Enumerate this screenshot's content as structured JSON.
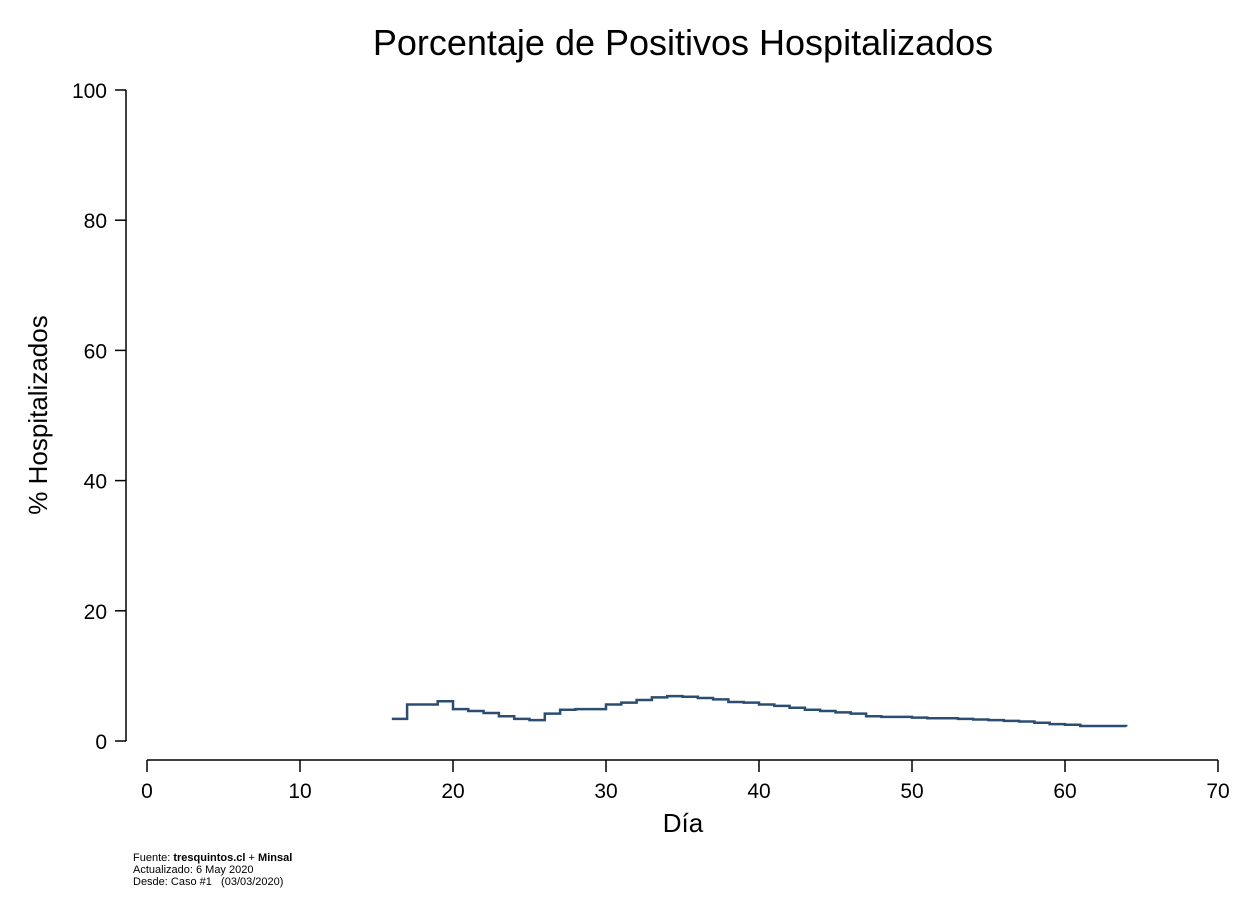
{
  "chart_data": {
    "type": "line",
    "step": true,
    "title": "Porcentaje de Positivos Hospitalizados",
    "xlabel": "Día",
    "ylabel": "% Hospitalizados",
    "xlim": [
      0,
      70
    ],
    "ylim": [
      0,
      100
    ],
    "xticks": [
      0,
      10,
      20,
      30,
      40,
      50,
      60,
      70
    ],
    "yticks": [
      0,
      20,
      40,
      60,
      80,
      100
    ],
    "grid": false,
    "line_color": "#2b4d72",
    "series": [
      {
        "x": [
          16,
          17,
          18,
          19,
          20,
          21,
          22,
          23,
          24,
          25,
          26,
          27,
          28,
          29,
          30,
          31,
          32,
          33,
          34,
          35,
          36,
          37,
          38,
          39,
          40,
          41,
          42,
          43,
          44,
          45,
          46,
          47,
          48,
          49,
          50,
          51,
          52,
          53,
          54,
          55,
          56,
          57,
          58,
          59,
          60,
          61,
          62,
          63,
          64
        ],
        "values": [
          3.4,
          5.6,
          5.6,
          6.1,
          4.9,
          4.6,
          4.3,
          3.8,
          3.4,
          3.2,
          4.2,
          4.8,
          4.9,
          4.9,
          5.6,
          5.9,
          6.3,
          6.7,
          6.9,
          6.8,
          6.6,
          6.4,
          6.0,
          5.9,
          5.6,
          5.4,
          5.1,
          4.8,
          4.6,
          4.4,
          4.2,
          3.8,
          3.7,
          3.7,
          3.6,
          3.5,
          3.5,
          3.4,
          3.3,
          3.2,
          3.1,
          3.0,
          2.8,
          2.6,
          2.5,
          2.3,
          2.3,
          2.3,
          2.2
        ]
      }
    ]
  },
  "footer": {
    "source_prefix": "Fuente: ",
    "source_a": "tresquintos.cl",
    "source_join": " + ",
    "source_b": "Minsal",
    "updated": "Actualizado: 6 May 2020",
    "since": "Desde: Caso #1   (03/03/2020)"
  }
}
